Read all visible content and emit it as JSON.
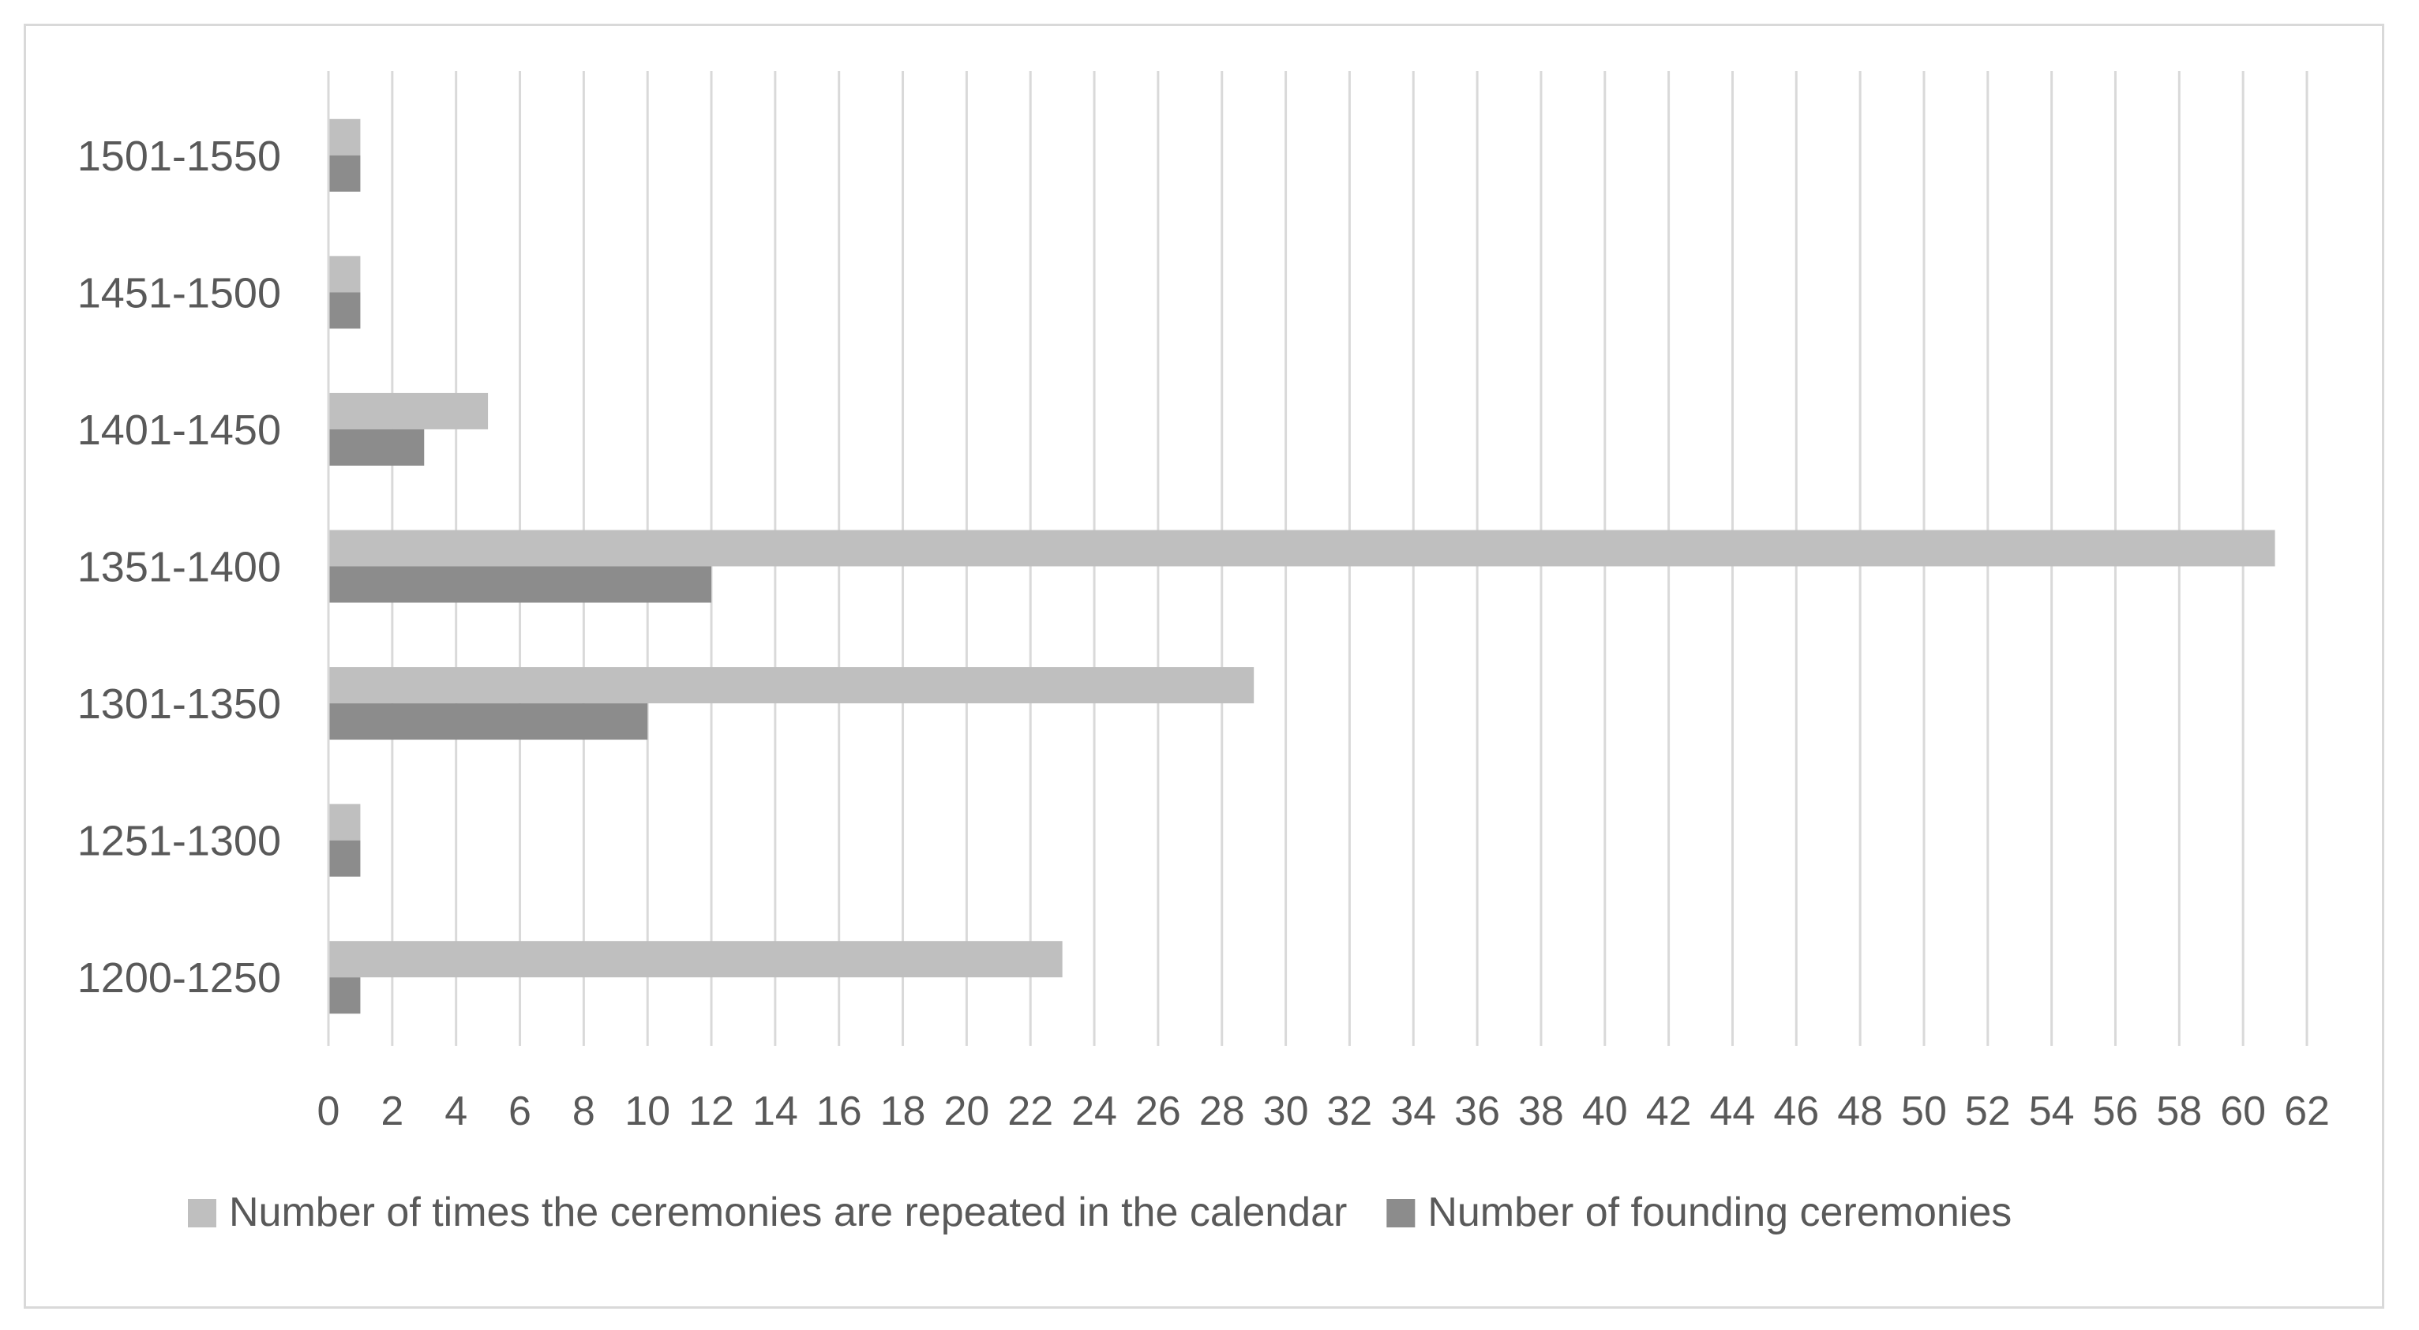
{
  "chart_data": {
    "type": "bar",
    "orientation": "horizontal",
    "categories": [
      "1200-1250",
      "1251-1300",
      "1301-1350",
      "1351-1400",
      "1401-1450",
      "1451-1500",
      "1501-1550"
    ],
    "series": [
      {
        "name": "Number of times the ceremonies are repeated in the calendar",
        "color": "#bfbfbf",
        "values": [
          23,
          1,
          29,
          61,
          5,
          1,
          1
        ]
      },
      {
        "name": "Number of founding ceremonies",
        "color": "#8c8c8c",
        "values": [
          1,
          1,
          10,
          12,
          3,
          1,
          1
        ]
      }
    ],
    "title": "",
    "xlabel": "",
    "ylabel": "",
    "xlim": [
      0,
      62
    ],
    "xticks": [
      "0",
      "2",
      "4",
      "6",
      "8",
      "10",
      "12",
      "14",
      "16",
      "18",
      "20",
      "22",
      "24",
      "26",
      "28",
      "30",
      "32",
      "34",
      "36",
      "38",
      "40",
      "42",
      "44",
      "46",
      "48",
      "50",
      "52",
      "54",
      "56",
      "58",
      "60",
      "62"
    ],
    "grid": "vertical",
    "legend_position": "bottom"
  }
}
